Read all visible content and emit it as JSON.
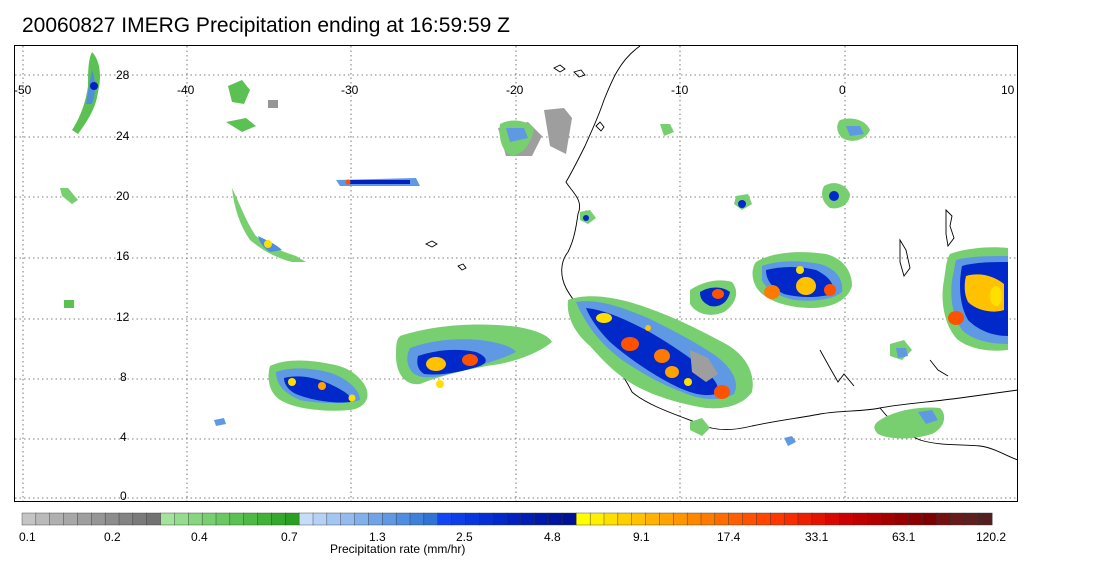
{
  "title": "20060827 IMERG Precipitation ending at 16:59:59 Z",
  "map": {
    "lon_ticks": [
      "-50",
      "-40",
      "-30",
      "-20",
      "-10",
      "0",
      "10"
    ],
    "lat_ticks": [
      "28",
      "24",
      "20",
      "16",
      "12",
      "8",
      "4",
      "0"
    ]
  },
  "colorbar": {
    "units_label": "Precipitation rate (mm/hr)",
    "tick_labels": [
      "0.1",
      "0.2",
      "0.4",
      "0.7",
      "1.3",
      "2.5",
      "4.8",
      "9.1",
      "17.4",
      "33.1",
      "63.1",
      "120.2"
    ],
    "colors": [
      "#c4c4c4",
      "#bababa",
      "#b0b0b0",
      "#a7a7a7",
      "#9e9e9e",
      "#959595",
      "#8c8c8c",
      "#838383",
      "#7a7a7a",
      "#727272",
      "#a5e29d",
      "#96dc8e",
      "#87d57f",
      "#78cf70",
      "#6ac861",
      "#5cc153",
      "#4eb945",
      "#41b138",
      "#34a82c",
      "#2aa022",
      "#c7dcf8",
      "#b6d1f5",
      "#a4c6f2",
      "#93bbee",
      "#81b0eb",
      "#70a4e7",
      "#5f99e3",
      "#4e8ddf",
      "#3e80da",
      "#2f73d5",
      "#1346f2",
      "#0d3ee8",
      "#0836de",
      "#042fd4",
      "#0128c9",
      "#0021bf",
      "#001db4",
      "#0019aa",
      "#00159f",
      "#001195",
      "#ffff00",
      "#ffef00",
      "#ffdf00",
      "#ffd000",
      "#ffc100",
      "#ffb200",
      "#ffa300",
      "#ff9500",
      "#ff8700",
      "#ff7a00",
      "#ff6c00",
      "#ff5f00",
      "#ff5200",
      "#ff4500",
      "#ff3800",
      "#f72c00",
      "#ee1f00",
      "#e41300",
      "#d90700",
      "#cc0000",
      "#bf0000",
      "#b20000",
      "#a50000",
      "#980000",
      "#8b0000",
      "#7f0000",
      "#741010",
      "#691a1a",
      "#5e1f1f",
      "#532020"
    ]
  }
}
